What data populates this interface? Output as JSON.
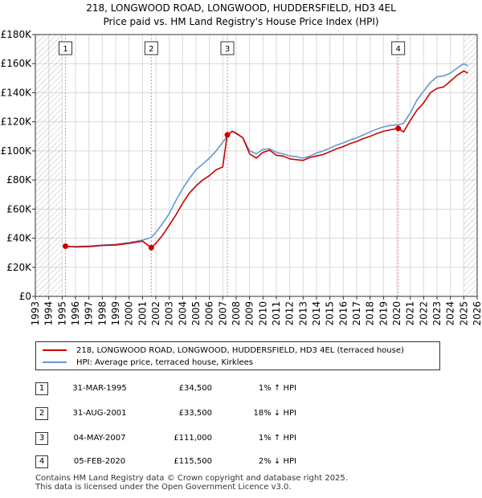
{
  "chart_data": {
    "type": "line",
    "title": "218, LONGWOOD ROAD, LONGWOOD, HUDDERSFIELD, HD3 4EL",
    "subtitle": "Price paid vs. HM Land Registry's House Price Index (HPI)",
    "xlim": [
      1993,
      2026
    ],
    "ylim": [
      0,
      180000
    ],
    "x_ticks": [
      "1993",
      "1994",
      "1995",
      "1996",
      "1997",
      "1998",
      "1999",
      "2000",
      "2001",
      "2002",
      "2003",
      "2004",
      "2005",
      "2006",
      "2007",
      "2008",
      "2009",
      "2010",
      "2011",
      "2012",
      "2013",
      "2014",
      "2015",
      "2016",
      "2017",
      "2018",
      "2019",
      "2020",
      "2021",
      "2022",
      "2023",
      "2024",
      "2025",
      "2026"
    ],
    "y_ticks": [
      {
        "value": 0,
        "label": "£0"
      },
      {
        "value": 20000,
        "label": "£20K"
      },
      {
        "value": 40000,
        "label": "£40K"
      },
      {
        "value": 60000,
        "label": "£60K"
      },
      {
        "value": 80000,
        "label": "£80K"
      },
      {
        "value": 100000,
        "label": "£100K"
      },
      {
        "value": 120000,
        "label": "£120K"
      },
      {
        "value": 140000,
        "label": "£140K"
      },
      {
        "value": 160000,
        "label": "£160K"
      },
      {
        "value": 180000,
        "label": "£180K"
      }
    ],
    "hatched_ranges": [
      [
        1993,
        1995.0
      ],
      [
        2025.0,
        2026
      ]
    ],
    "series": [
      {
        "name": "218, LONGWOOD ROAD, LONGWOOD, HUDDERSFIELD, HD3 4EL (terraced house)",
        "color": "#cc0000",
        "points": [
          [
            1995.25,
            34500
          ],
          [
            1996,
            34000
          ],
          [
            1997,
            34200
          ],
          [
            1998,
            35000
          ],
          [
            1999,
            35300
          ],
          [
            2000,
            36500
          ],
          [
            2001,
            38000
          ],
          [
            2001.66,
            33500
          ],
          [
            2002,
            36500
          ],
          [
            2002.5,
            42000
          ],
          [
            2003,
            49000
          ],
          [
            2003.5,
            56000
          ],
          [
            2004,
            64000
          ],
          [
            2004.5,
            71000
          ],
          [
            2005,
            76000
          ],
          [
            2005.5,
            80000
          ],
          [
            2006,
            83000
          ],
          [
            2006.5,
            87000
          ],
          [
            2007,
            89000
          ],
          [
            2007.33,
            111000
          ],
          [
            2007.7,
            113500
          ],
          [
            2008,
            112000
          ],
          [
            2008.5,
            109000
          ],
          [
            2009,
            98000
          ],
          [
            2009.5,
            95000
          ],
          [
            2010,
            99000
          ],
          [
            2010.5,
            100500
          ],
          [
            2011,
            97000
          ],
          [
            2011.5,
            96500
          ],
          [
            2012,
            94500
          ],
          [
            2012.5,
            94000
          ],
          [
            2013,
            93500
          ],
          [
            2013.5,
            95500
          ],
          [
            2014,
            96500
          ],
          [
            2014.5,
            97500
          ],
          [
            2015,
            99500
          ],
          [
            2015.5,
            101500
          ],
          [
            2016,
            103000
          ],
          [
            2016.5,
            105000
          ],
          [
            2017,
            106500
          ],
          [
            2017.5,
            108500
          ],
          [
            2018,
            110000
          ],
          [
            2018.5,
            112000
          ],
          [
            2019,
            113500
          ],
          [
            2019.5,
            114500
          ],
          [
            2020.1,
            115500
          ],
          [
            2020.5,
            113000
          ],
          [
            2021,
            121000
          ],
          [
            2021.5,
            128000
          ],
          [
            2022,
            133000
          ],
          [
            2022.5,
            140000
          ],
          [
            2023,
            143000
          ],
          [
            2023.5,
            144000
          ],
          [
            2024,
            148000
          ],
          [
            2024.5,
            152000
          ],
          [
            2025,
            155000
          ],
          [
            2025.3,
            153500
          ]
        ]
      },
      {
        "name": "HPI: Average price, terraced house, Kirklees",
        "color": "#6699cc",
        "points": [
          [
            1995.25,
            34200
          ],
          [
            1996,
            34300
          ],
          [
            1997,
            34600
          ],
          [
            1998,
            35200
          ],
          [
            1999,
            35800
          ],
          [
            2000,
            37000
          ],
          [
            2001,
            38600
          ],
          [
            2001.66,
            40500
          ],
          [
            2002,
            44000
          ],
          [
            2002.5,
            50000
          ],
          [
            2003,
            57000
          ],
          [
            2003.5,
            66000
          ],
          [
            2004,
            74000
          ],
          [
            2004.5,
            81000
          ],
          [
            2005,
            87000
          ],
          [
            2005.5,
            91000
          ],
          [
            2006,
            95000
          ],
          [
            2006.5,
            100000
          ],
          [
            2007,
            106000
          ],
          [
            2007.33,
            110000
          ],
          [
            2007.7,
            113500
          ],
          [
            2008,
            112500
          ],
          [
            2008.5,
            109000
          ],
          [
            2009,
            100000
          ],
          [
            2009.5,
            98000
          ],
          [
            2010,
            101000
          ],
          [
            2010.5,
            101500
          ],
          [
            2011,
            99000
          ],
          [
            2011.5,
            98000
          ],
          [
            2012,
            96500
          ],
          [
            2012.5,
            96000
          ],
          [
            2013,
            95000
          ],
          [
            2013.5,
            96500
          ],
          [
            2014,
            98500
          ],
          [
            2014.5,
            100000
          ],
          [
            2015,
            102000
          ],
          [
            2015.5,
            104000
          ],
          [
            2016,
            105500
          ],
          [
            2016.5,
            107500
          ],
          [
            2017,
            109000
          ],
          [
            2017.5,
            111000
          ],
          [
            2018,
            113000
          ],
          [
            2018.5,
            115000
          ],
          [
            2019,
            116500
          ],
          [
            2019.5,
            117500
          ],
          [
            2020.1,
            118000
          ],
          [
            2020.5,
            119000
          ],
          [
            2021,
            126000
          ],
          [
            2021.5,
            135000
          ],
          [
            2022,
            141000
          ],
          [
            2022.5,
            147000
          ],
          [
            2023,
            151000
          ],
          [
            2023.5,
            151500
          ],
          [
            2024,
            153500
          ],
          [
            2024.5,
            157000
          ],
          [
            2025,
            160000
          ],
          [
            2025.3,
            158500
          ]
        ]
      }
    ],
    "markers": [
      {
        "label": "1",
        "x": 1995.25,
        "value": 34500
      },
      {
        "label": "2",
        "x": 2001.66,
        "value": 33500
      },
      {
        "label": "3",
        "x": 2007.34,
        "value": 111000
      },
      {
        "label": "4",
        "x": 2020.1,
        "value": 115500
      }
    ],
    "legend": [
      {
        "label": "218, LONGWOOD ROAD, LONGWOOD, HUDDERSFIELD, HD3 4EL (terraced house)",
        "color": "#cc0000"
      },
      {
        "label": "HPI: Average price, terraced house, Kirklees",
        "color": "#6699cc"
      }
    ],
    "transactions": [
      {
        "num": "1",
        "date": "31-MAR-1995",
        "price": "£34,500",
        "hpi": "1% ↑ HPI"
      },
      {
        "num": "2",
        "date": "31-AUG-2001",
        "price": "£33,500",
        "hpi": "18% ↓ HPI"
      },
      {
        "num": "3",
        "date": "04-MAY-2007",
        "price": "£111,000",
        "hpi": "1% ↑ HPI"
      },
      {
        "num": "4",
        "date": "05-FEB-2020",
        "price": "£115,500",
        "hpi": "2% ↓ HPI"
      }
    ],
    "footer": [
      "Contains HM Land Registry data © Crown copyright and database right 2025.",
      "This data is licensed under the Open Government Licence v3.0."
    ]
  }
}
